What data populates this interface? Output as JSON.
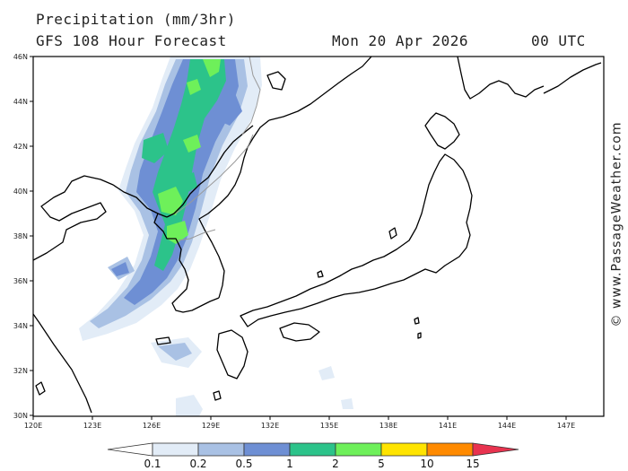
{
  "header": {
    "title": "Precipitation (mm/3hr)",
    "subtitle": "GFS 108 Hour Forecast",
    "valid_date": "Mon 20 Apr 2026",
    "valid_time": "00 UTC"
  },
  "watermark": "© www.PassageWeather.com",
  "map": {
    "lon_labels": [
      "120E",
      "123E",
      "126E",
      "129E",
      "132E",
      "135E",
      "138E",
      "141E",
      "144E",
      "147E"
    ],
    "lat_labels": [
      "46N",
      "44N",
      "42N",
      "40N",
      "38N",
      "36N",
      "34N",
      "32N",
      "30N"
    ]
  },
  "legend": {
    "labels": [
      "0.1",
      "0.2",
      "0.5",
      "1",
      "2",
      "5",
      "10",
      "15"
    ],
    "colors": {
      "lt": "#ffffff",
      "c1": "#e2ecf7",
      "c2": "#a9c1e4",
      "c3": "#6e8fd4",
      "c4": "#2cc38a",
      "c5": "#6ef05a",
      "c6": "#ffe400",
      "c7": "#ff8a00",
      "c8": "#e8334f"
    }
  },
  "colors": {
    "coast": "#000000",
    "border": "#9a9a9a",
    "frame": "#000000"
  }
}
